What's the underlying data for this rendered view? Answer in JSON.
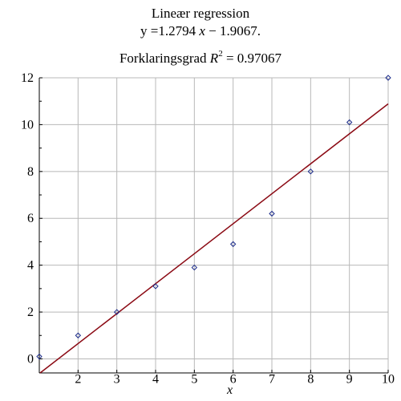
{
  "title": {
    "line1": "Lineær regression",
    "eq_prefix": "y =1.2794",
    "eq_var": "x",
    "eq_suffix": "− 1.9067.",
    "r2_prefix": "Forklaringsgrad",
    "r2_symbol": "R",
    "r2_exp": "2",
    "r2_suffix": "= 0.97067"
  },
  "colors": {
    "grid": "#b8b8b8",
    "axis": "#000000",
    "regression_line": "#8b0a14",
    "points": "#1a2a8a"
  },
  "chart_data": {
    "type": "scatter",
    "title": "Lineær regression",
    "xlabel": "x",
    "ylabel": "",
    "xlim": [
      1,
      10
    ],
    "ylim": [
      -0.6,
      12
    ],
    "grid": true,
    "x_ticks": [
      "2",
      "3",
      "4",
      "5",
      "6",
      "7",
      "8",
      "9",
      "10"
    ],
    "y_ticks": [
      "0",
      "2",
      "4",
      "6",
      "8",
      "10",
      "12"
    ],
    "points": [
      {
        "x": 1,
        "y": 0.1
      },
      {
        "x": 2,
        "y": 1.0
      },
      {
        "x": 3,
        "y": 2.0
      },
      {
        "x": 4,
        "y": 3.1
      },
      {
        "x": 5,
        "y": 3.9
      },
      {
        "x": 6,
        "y": 4.9
      },
      {
        "x": 7,
        "y": 6.2
      },
      {
        "x": 8,
        "y": 8.0
      },
      {
        "x": 9,
        "y": 10.1
      },
      {
        "x": 10,
        "y": 12.0
      }
    ],
    "regression": {
      "slope": 1.2794,
      "intercept": -1.9067,
      "r_squared": 0.97067
    }
  }
}
